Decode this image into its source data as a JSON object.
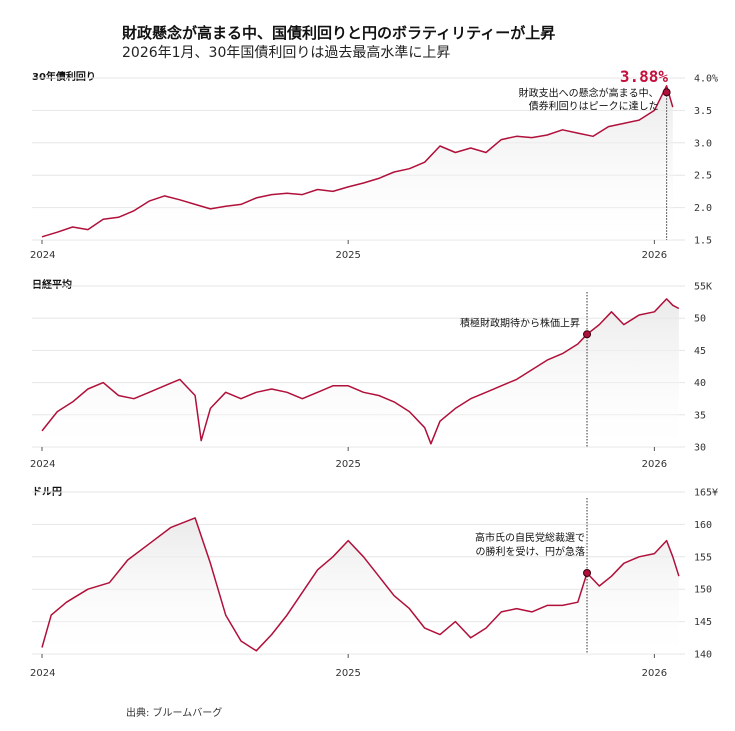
{
  "title": "財政懸念が高まる中、国債利回りと円のボラティリティーが上昇",
  "subtitle": "2026年1月、30年国債利回りは過去最高水準に上昇",
  "source": "出典: ブルームバーグ",
  "colors": {
    "line": "#b0103a",
    "marker": "#b0103a",
    "highlight": "#c4103d"
  },
  "chart_data": [
    {
      "type": "line",
      "name": "30年債利回り",
      "title": "30年債利回り",
      "ylim": [
        1.5,
        4.0
      ],
      "yticks": [
        1.5,
        2.0,
        2.5,
        3.0,
        3.5,
        4.0
      ],
      "ytick_labels": [
        "1.5",
        "2.0",
        "2.5",
        "3.0",
        "3.5",
        "4.0%"
      ],
      "x_range": [
        2024.0,
        2026.1
      ],
      "xticks": [
        2024,
        2025,
        2026
      ],
      "xtick_labels": [
        "2024",
        "2025",
        "2026"
      ],
      "highlight_value": "3.88%",
      "annotation": {
        "x": 2026.04,
        "y": 3.78,
        "lines": [
          "財政支出への懸念が高まる中、",
          "債券利回りはピークに達した"
        ]
      },
      "series": [
        {
          "name": "30年債利回り",
          "x": [
            2024.0,
            2024.05,
            2024.1,
            2024.15,
            2024.2,
            2024.25,
            2024.3,
            2024.35,
            2024.4,
            2024.45,
            2024.5,
            2024.55,
            2024.6,
            2024.65,
            2024.7,
            2024.75,
            2024.8,
            2024.85,
            2024.9,
            2024.95,
            2025.0,
            2025.05,
            2025.1,
            2025.15,
            2025.2,
            2025.25,
            2025.3,
            2025.35,
            2025.4,
            2025.45,
            2025.5,
            2025.55,
            2025.6,
            2025.65,
            2025.7,
            2025.75,
            2025.8,
            2025.85,
            2025.9,
            2025.95,
            2026.0,
            2026.04,
            2026.06
          ],
          "y": [
            1.55,
            1.62,
            1.7,
            1.66,
            1.82,
            1.85,
            1.95,
            2.1,
            2.18,
            2.12,
            2.05,
            1.98,
            2.02,
            2.05,
            2.15,
            2.2,
            2.22,
            2.2,
            2.28,
            2.25,
            2.32,
            2.38,
            2.45,
            2.55,
            2.6,
            2.7,
            2.95,
            2.85,
            2.92,
            2.85,
            3.05,
            3.1,
            3.08,
            3.12,
            3.2,
            3.15,
            3.1,
            3.25,
            3.3,
            3.35,
            3.5,
            3.88,
            3.55
          ]
        }
      ]
    },
    {
      "type": "line",
      "name": "日経平均",
      "title": "日経平均",
      "ylim": [
        30,
        55
      ],
      "yticks": [
        30,
        35,
        40,
        45,
        50,
        55
      ],
      "ytick_labels": [
        "30",
        "35",
        "40",
        "45",
        "50",
        "55K"
      ],
      "x_range": [
        2024.0,
        2026.1
      ],
      "xticks": [
        2024,
        2025,
        2026
      ],
      "xtick_labels": [
        "2024",
        "2025",
        "2026"
      ],
      "annotation": {
        "x": 2025.78,
        "y": 47.5,
        "lines": [
          "積極財政期待から株価上昇"
        ]
      },
      "series": [
        {
          "name": "日経平均",
          "x": [
            2024.0,
            2024.05,
            2024.1,
            2024.15,
            2024.2,
            2024.25,
            2024.3,
            2024.35,
            2024.4,
            2024.45,
            2024.5,
            2024.52,
            2024.55,
            2024.6,
            2024.65,
            2024.7,
            2024.75,
            2024.8,
            2024.85,
            2024.9,
            2024.95,
            2025.0,
            2025.05,
            2025.1,
            2025.15,
            2025.2,
            2025.25,
            2025.27,
            2025.3,
            2025.35,
            2025.4,
            2025.45,
            2025.5,
            2025.55,
            2025.6,
            2025.65,
            2025.7,
            2025.75,
            2025.78,
            2025.82,
            2025.86,
            2025.9,
            2025.95,
            2026.0,
            2026.04,
            2026.06,
            2026.08
          ],
          "y": [
            32.5,
            35.5,
            37,
            39,
            40,
            38,
            37.5,
            38.5,
            39.5,
            40.5,
            38,
            31,
            36,
            38.5,
            37.5,
            38.5,
            39,
            38.5,
            37.5,
            38.5,
            39.5,
            39.5,
            38.5,
            38,
            37,
            35.5,
            33,
            30.5,
            34,
            36,
            37.5,
            38.5,
            39.5,
            40.5,
            42,
            43.5,
            44.5,
            46,
            47.5,
            49,
            51,
            49,
            50.5,
            51,
            53,
            52,
            51.5
          ]
        }
      ]
    },
    {
      "type": "line",
      "name": "ドル円",
      "title": "ドル円",
      "ylim": [
        140,
        165
      ],
      "yticks": [
        140,
        145,
        150,
        155,
        160,
        165
      ],
      "ytick_labels": [
        "140",
        "145",
        "150",
        "155",
        "160",
        "165¥"
      ],
      "x_range": [
        2024.0,
        2026.1
      ],
      "xticks": [
        2024,
        2025,
        2026
      ],
      "xtick_labels": [
        "2024",
        "2025",
        "2026"
      ],
      "annotation": {
        "x": 2025.78,
        "y": 152.5,
        "lines": [
          "高市氏の自民党総裁選で",
          "の勝利を受け、円が急落"
        ]
      },
      "series": [
        {
          "name": "ドル円",
          "x": [
            2024.0,
            2024.03,
            2024.08,
            2024.15,
            2024.22,
            2024.28,
            2024.35,
            2024.42,
            2024.5,
            2024.55,
            2024.6,
            2024.65,
            2024.7,
            2024.75,
            2024.8,
            2024.85,
            2024.9,
            2024.95,
            2025.0,
            2025.05,
            2025.1,
            2025.15,
            2025.2,
            2025.25,
            2025.3,
            2025.35,
            2025.4,
            2025.45,
            2025.5,
            2025.55,
            2025.6,
            2025.65,
            2025.7,
            2025.75,
            2025.78,
            2025.82,
            2025.86,
            2025.9,
            2025.95,
            2026.0,
            2026.04,
            2026.06,
            2026.08
          ],
          "y": [
            141,
            146,
            148,
            150,
            151,
            154.5,
            157,
            159.5,
            161,
            154,
            146,
            142,
            140.5,
            143,
            146,
            149.5,
            153,
            155,
            157.5,
            155,
            152,
            149,
            147,
            144,
            143,
            145,
            142.5,
            144,
            146.5,
            147,
            146.5,
            147.5,
            147.5,
            148,
            152.5,
            150.5,
            152,
            154,
            155,
            155.5,
            157.5,
            155,
            152
          ]
        }
      ]
    }
  ]
}
